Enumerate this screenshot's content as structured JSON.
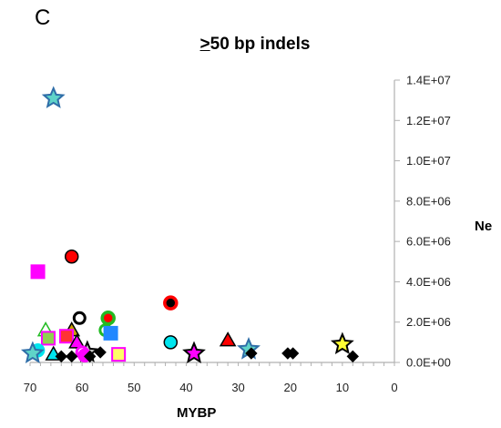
{
  "panel_letter": "C",
  "chart_data": {
    "type": "scatter",
    "title_underlined": ">",
    "title_rest": "50 bp indels",
    "xlabel": "MYBP",
    "ylabel": "Ne",
    "xlim": [
      70,
      0
    ],
    "ylim": [
      0,
      14000000
    ],
    "x_ticks": [
      70,
      60,
      50,
      40,
      30,
      20,
      10,
      0
    ],
    "y_ticks": [
      {
        "value": 0,
        "label": "0.0E+00"
      },
      {
        "value": 2000000,
        "label": "2.0E+06"
      },
      {
        "value": 4000000,
        "label": "4.0E+06"
      },
      {
        "value": 6000000,
        "label": "6.0E+06"
      },
      {
        "value": 8000000,
        "label": "8.0E+06"
      },
      {
        "value": 10000000,
        "label": "1.0E+07"
      },
      {
        "value": 12000000,
        "label": "1.2E+07"
      },
      {
        "value": 14000000,
        "label": "1.4E+07"
      }
    ],
    "grid": false,
    "y_axis_side": "right",
    "points": [
      {
        "x": 65.5,
        "y": 13100000,
        "shape": "star",
        "fill": "#5fd3c8",
        "stroke": "#2f6ea8"
      },
      {
        "x": 68.5,
        "y": 4500000,
        "shape": "square",
        "fill": "#ff00ff",
        "stroke": "#ff00ff"
      },
      {
        "x": 62,
        "y": 5250000,
        "shape": "circle",
        "fill": "#ff0000",
        "stroke": "#000000"
      },
      {
        "x": 43,
        "y": 2950000,
        "shape": "circle-dot",
        "fill": "#000000",
        "stroke": "#ff0000"
      },
      {
        "x": 60.5,
        "y": 2200000,
        "shape": "ring",
        "fill": "#ffffff",
        "stroke": "#000000"
      },
      {
        "x": 55,
        "y": 2200000,
        "shape": "circle-dot",
        "fill": "#ff0000",
        "stroke": "#22bb22"
      },
      {
        "x": 55.5,
        "y": 1600000,
        "shape": "ring",
        "fill": "#ffffff",
        "stroke": "#22bb22"
      },
      {
        "x": 67,
        "y": 1600000,
        "shape": "triangle",
        "fill": "#ffffff",
        "stroke": "#22bb22"
      },
      {
        "x": 66.5,
        "y": 1200000,
        "shape": "square",
        "fill": "#8fd14f",
        "stroke": "#ff00ff"
      },
      {
        "x": 62,
        "y": 1600000,
        "shape": "triangle",
        "fill": "#c8a000",
        "stroke": "#000000"
      },
      {
        "x": 63,
        "y": 1300000,
        "shape": "square",
        "fill": "#ff3333",
        "stroke": "#ff00ff"
      },
      {
        "x": 61,
        "y": 1000000,
        "shape": "triangle",
        "fill": "#ff00ff",
        "stroke": "#000000"
      },
      {
        "x": 54.5,
        "y": 1450000,
        "shape": "square",
        "fill": "#2288ff",
        "stroke": "#2288ff"
      },
      {
        "x": 43,
        "y": 1000000,
        "shape": "circle",
        "fill": "#00e5ee",
        "stroke": "#000000"
      },
      {
        "x": 32,
        "y": 1100000,
        "shape": "triangle",
        "fill": "#ff0000",
        "stroke": "#000000"
      },
      {
        "x": 10,
        "y": 900000,
        "shape": "star",
        "fill": "#ffff33",
        "stroke": "#000000"
      },
      {
        "x": 68.5,
        "y": 600000,
        "shape": "circle",
        "fill": "#00e5ee",
        "stroke": "#00e5ee"
      },
      {
        "x": 69.5,
        "y": 450000,
        "shape": "star",
        "fill": "#5fd3c8",
        "stroke": "#2f6ea8"
      },
      {
        "x": 65.5,
        "y": 400000,
        "shape": "triangle",
        "fill": "#00e5ee",
        "stroke": "#000000"
      },
      {
        "x": 59,
        "y": 500000,
        "shape": "star",
        "fill": "#c8c8c8",
        "stroke": "#000000"
      },
      {
        "x": 60,
        "y": 500000,
        "shape": "ring",
        "fill": "#ffffff",
        "stroke": "#ff00ff"
      },
      {
        "x": 59.5,
        "y": 350000,
        "shape": "circle",
        "fill": "#ff00ff",
        "stroke": "#ff00ff"
      },
      {
        "x": 56.5,
        "y": 500000,
        "shape": "diamond",
        "fill": "#000000",
        "stroke": "#000000"
      },
      {
        "x": 64,
        "y": 300000,
        "shape": "diamond",
        "fill": "#000000",
        "stroke": "#000000"
      },
      {
        "x": 62,
        "y": 300000,
        "shape": "diamond",
        "fill": "#000000",
        "stroke": "#000000"
      },
      {
        "x": 58.5,
        "y": 300000,
        "shape": "diamond",
        "fill": "#000000",
        "stroke": "#000000"
      },
      {
        "x": 53,
        "y": 400000,
        "shape": "square",
        "fill": "#ffff66",
        "stroke": "#ff00ff"
      },
      {
        "x": 38.5,
        "y": 450000,
        "shape": "star",
        "fill": "#ff00ff",
        "stroke": "#000000"
      },
      {
        "x": 28,
        "y": 650000,
        "shape": "star",
        "fill": "#5fd3c8",
        "stroke": "#2f6ea8"
      },
      {
        "x": 27.5,
        "y": 450000,
        "shape": "diamond",
        "fill": "#000000",
        "stroke": "#000000"
      },
      {
        "x": 20.5,
        "y": 450000,
        "shape": "diamond",
        "fill": "#000000",
        "stroke": "#000000"
      },
      {
        "x": 19.5,
        "y": 450000,
        "shape": "diamond",
        "fill": "#000000",
        "stroke": "#000000"
      },
      {
        "x": 8,
        "y": 300000,
        "shape": "diamond",
        "fill": "#000000",
        "stroke": "#000000"
      }
    ]
  }
}
